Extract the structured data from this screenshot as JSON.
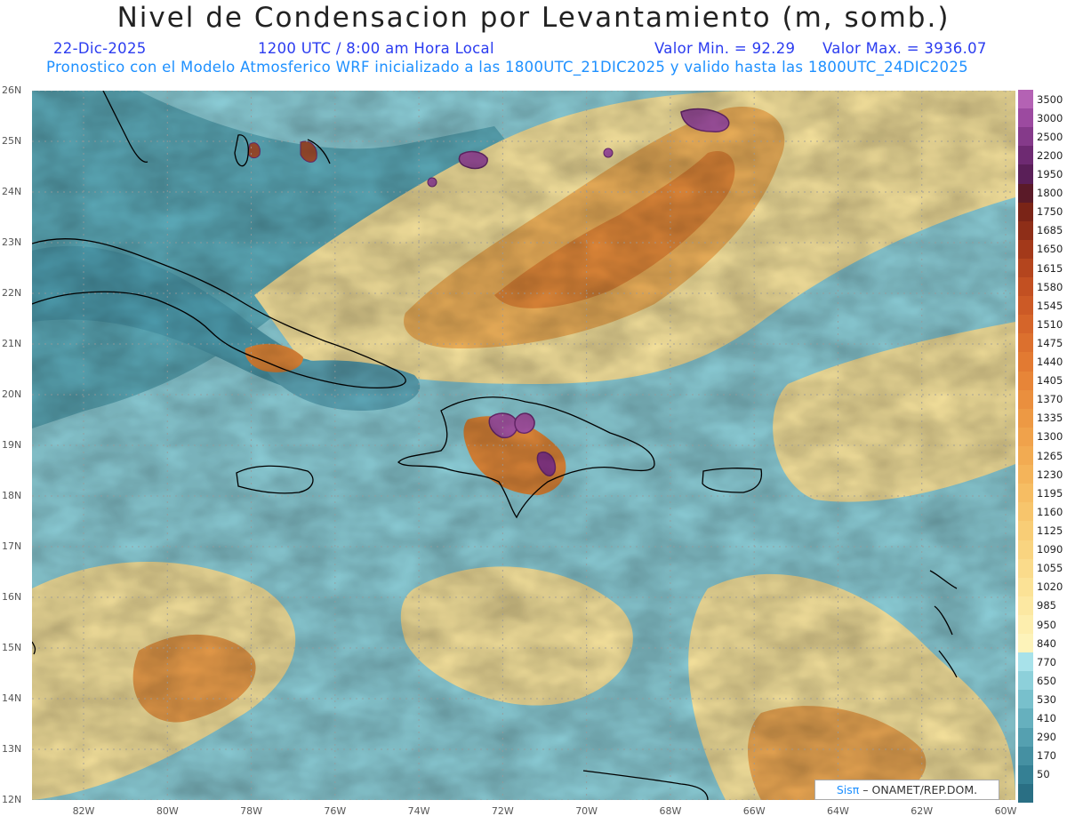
{
  "title": "Nivel de Condensacion por Levantamiento (m, somb.)",
  "date": "22-Dic-2025",
  "time": "1200 UTC / 8:00 am Hora Local",
  "valor_min": "Valor Min. = 92.29",
  "valor_max": "Valor Max. = 3936.07",
  "forecast": "Pronostico con el Modelo Atmosferico WRF inicializado a las 1800UTC_21DIC2025 y valido hasta las  1800UTC_24DIC2025",
  "lat_labels": [
    "26N",
    "25N",
    "24N",
    "23N",
    "22N",
    "21N",
    "20N",
    "19N",
    "18N",
    "17N",
    "16N",
    "15N",
    "14N",
    "13N",
    "12N"
  ],
  "lon_labels": [
    "82W",
    "80W",
    "78W",
    "76W",
    "74W",
    "72W",
    "70W",
    "68W",
    "66W",
    "64W",
    "62W",
    "60W"
  ],
  "legend": [
    {
      "label": "3500",
      "color": "#b462b4"
    },
    {
      "label": "3000",
      "color": "#9c4aa0"
    },
    {
      "label": "2500",
      "color": "#853a8a"
    },
    {
      "label": "2200",
      "color": "#6e2a72"
    },
    {
      "label": "1950",
      "color": "#5a1f58"
    },
    {
      "label": "1800",
      "color": "#5a1a28"
    },
    {
      "label": "1750",
      "color": "#7a2417"
    },
    {
      "label": "1685",
      "color": "#8e2e18"
    },
    {
      "label": "1650",
      "color": "#a3391a"
    },
    {
      "label": "1615",
      "color": "#b4451e"
    },
    {
      "label": "1580",
      "color": "#c25022"
    },
    {
      "label": "1545",
      "color": "#cc5a26"
    },
    {
      "label": "1510",
      "color": "#d5652a"
    },
    {
      "label": "1475",
      "color": "#dc702e"
    },
    {
      "label": "1440",
      "color": "#e27a32"
    },
    {
      "label": "1405",
      "color": "#e78538"
    },
    {
      "label": "1370",
      "color": "#ea8f3e"
    },
    {
      "label": "1335",
      "color": "#ed9944"
    },
    {
      "label": "1300",
      "color": "#f0a24b"
    },
    {
      "label": "1265",
      "color": "#f2ab52"
    },
    {
      "label": "1230",
      "color": "#f4b45a"
    },
    {
      "label": "1195",
      "color": "#f6bd63"
    },
    {
      "label": "1160",
      "color": "#f7c56c"
    },
    {
      "label": "1125",
      "color": "#f8cd76"
    },
    {
      "label": "1090",
      "color": "#f9d480"
    },
    {
      "label": "1055",
      "color": "#fadb8b"
    },
    {
      "label": "1020",
      "color": "#fbe296"
    },
    {
      "label": "985",
      "color": "#fce8a2"
    },
    {
      "label": "950",
      "color": "#fdeeae"
    },
    {
      "label": "840",
      "color": "#fdf3ba"
    },
    {
      "label": "770",
      "color": "#a8e2ea"
    },
    {
      "label": "650",
      "color": "#8dd0da"
    },
    {
      "label": "530",
      "color": "#78c0cc"
    },
    {
      "label": "410",
      "color": "#66b0be"
    },
    {
      "label": "290",
      "color": "#55a0b0"
    },
    {
      "label": "170",
      "color": "#4590a2"
    },
    {
      "label": "50",
      "color": "#358094"
    },
    {
      "label": "",
      "color": "#2a6f84"
    }
  ],
  "credit_sis": "Sisπ",
  "credit_rest": "– ONAMET/REP.DOM.",
  "colors": {
    "subtitle": "#2b3cf0",
    "forecast": "#1e90ff"
  }
}
